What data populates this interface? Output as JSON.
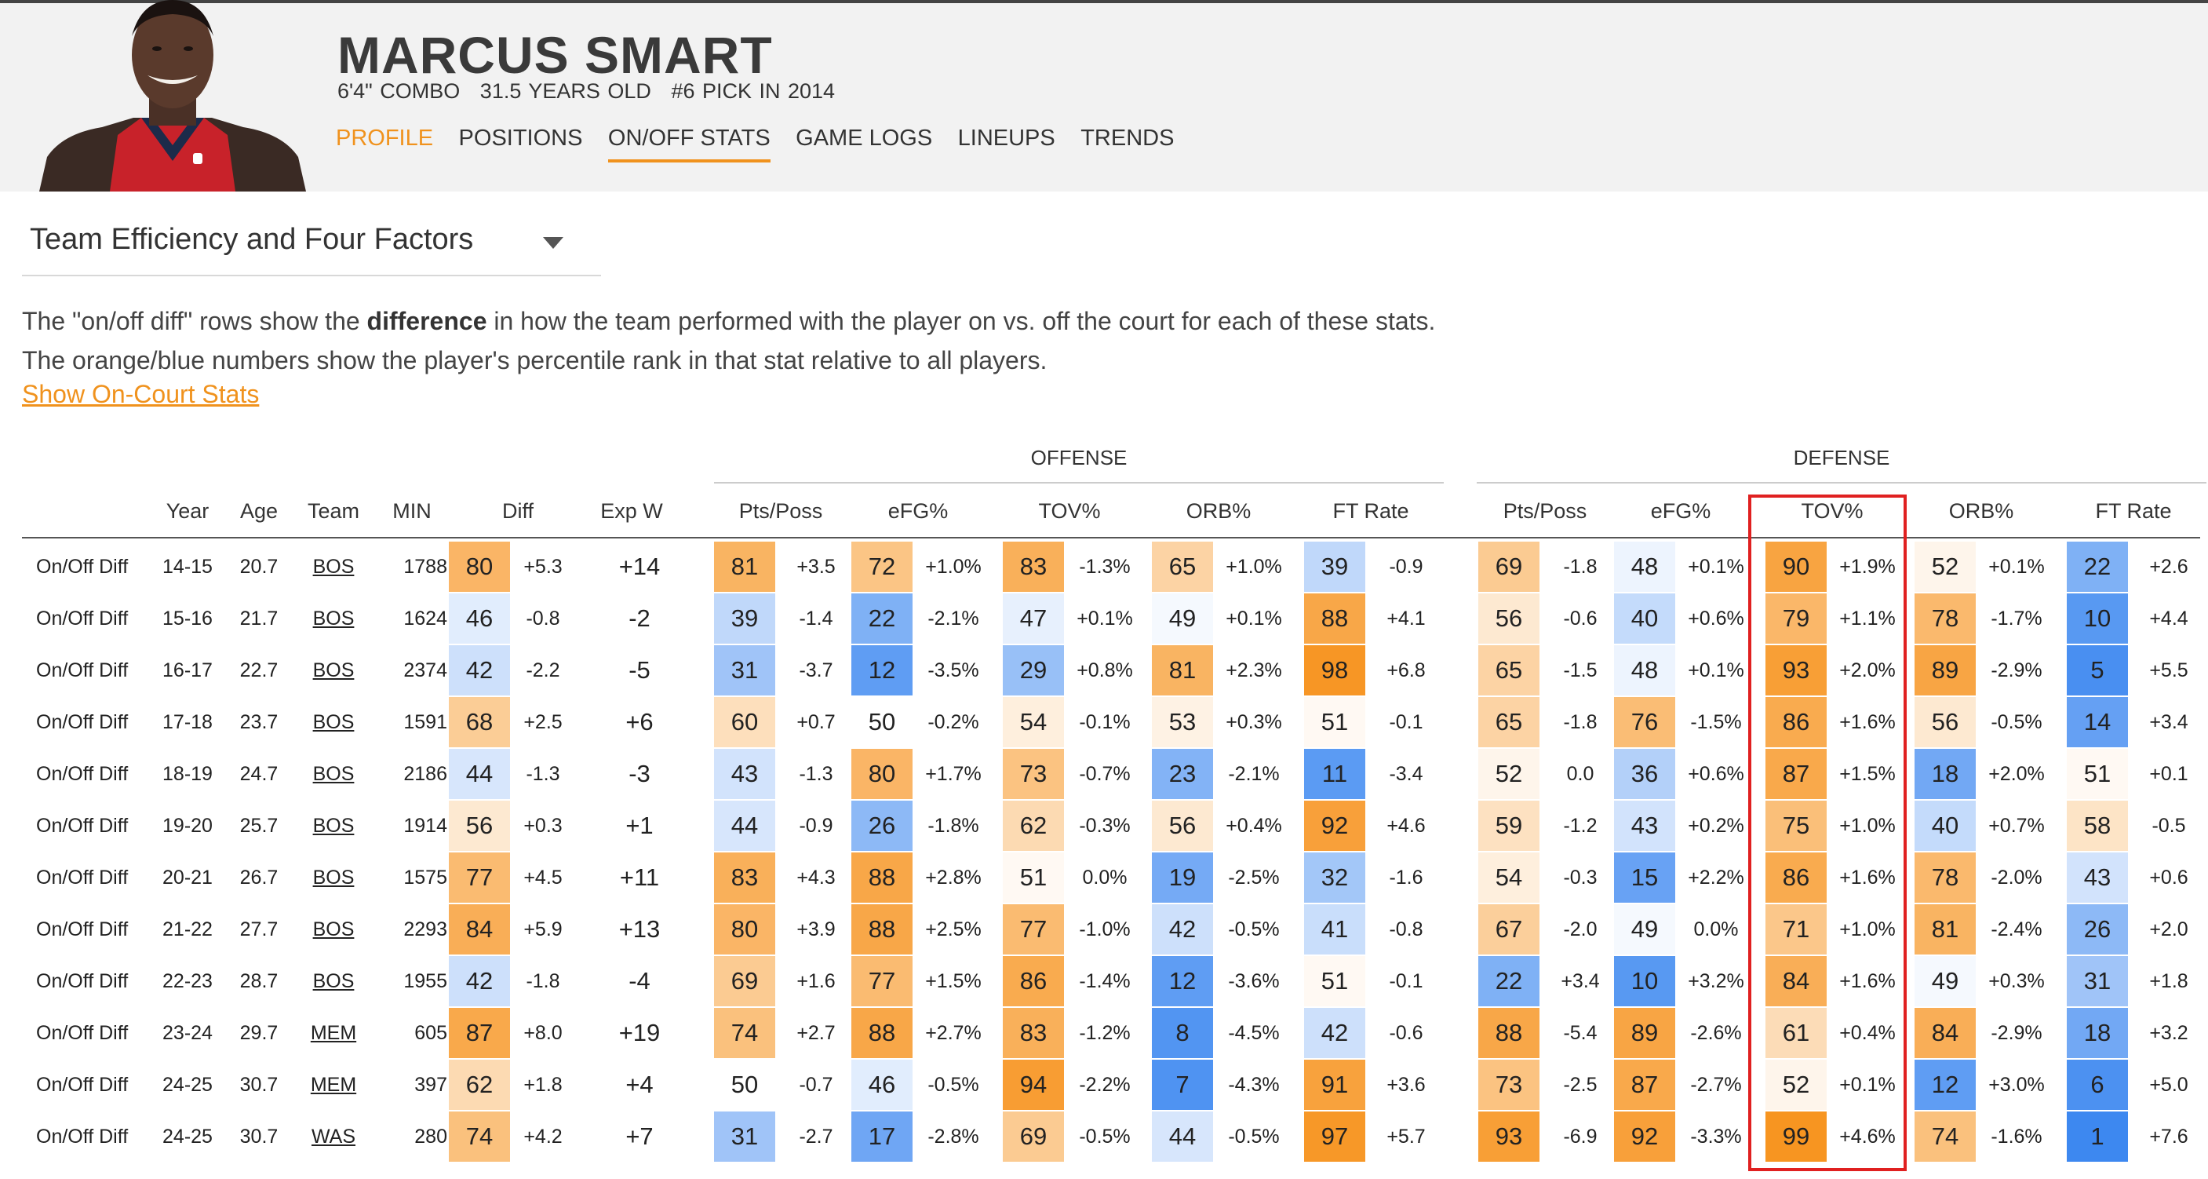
{
  "player": {
    "name": "MARCUS SMART",
    "height": "6'4\" COMBO",
    "age": "31.5 YEARS OLD",
    "draft": "#6 PICK IN 2014"
  },
  "nav": [
    "PROFILE",
    "POSITIONS",
    "ON/OFF STATS",
    "GAME LOGS",
    "LINEUPS",
    "TRENDS"
  ],
  "selector": {
    "label": "Team Efficiency and Four Factors"
  },
  "description": {
    "line1a": "The \"on/off diff\" rows show the ",
    "line1b": "difference",
    "line1c": " in how the team performed with the player on vs. off the court for each of these stats.",
    "line2": "The orange/blue numbers show the player's percentile rank in that stat relative to all players."
  },
  "show_link": "Show On-Court Stats",
  "groups": {
    "offense": "OFFENSE",
    "defense": "DEFENSE"
  },
  "headers": {
    "year": "Year",
    "age": "Age",
    "team": "Team",
    "min": "MIN",
    "diff": "Diff",
    "expw": "Exp W",
    "stats": [
      "Pts/Poss",
      "eFG%",
      "TOV%",
      "ORB%",
      "FT Rate",
      "Pts/Poss",
      "eFG%",
      "TOV%",
      "ORB%",
      "FT Rate"
    ]
  },
  "colors": {
    "orange_strong": "#f7931e",
    "blue_strong": "#3a86f0",
    "highlight": "#e02020",
    "accent": "#f0921d"
  },
  "rows": [
    {
      "label": "On/Off Diff",
      "year": "14-15",
      "age": "20.7",
      "team": "BOS",
      "min": "1788",
      "diff_pct": 80,
      "diff": "+5.3",
      "expw": "+14",
      "stats": [
        [
          81,
          "+3.5"
        ],
        [
          72,
          "+1.0%"
        ],
        [
          83,
          "-1.3%"
        ],
        [
          65,
          "+1.0%"
        ],
        [
          39,
          "-0.9"
        ],
        [
          69,
          "-1.8"
        ],
        [
          48,
          "+0.1%"
        ],
        [
          90,
          "+1.9%"
        ],
        [
          52,
          "+0.1%"
        ],
        [
          22,
          "+2.6"
        ]
      ]
    },
    {
      "label": "On/Off Diff",
      "year": "15-16",
      "age": "21.7",
      "team": "BOS",
      "min": "1624",
      "diff_pct": 46,
      "diff": "-0.8",
      "expw": "-2",
      "stats": [
        [
          39,
          "-1.4"
        ],
        [
          22,
          "-2.1%"
        ],
        [
          47,
          "+0.1%"
        ],
        [
          49,
          "+0.1%"
        ],
        [
          88,
          "+4.1"
        ],
        [
          56,
          "-0.6"
        ],
        [
          40,
          "+0.6%"
        ],
        [
          79,
          "+1.1%"
        ],
        [
          78,
          "-1.7%"
        ],
        [
          10,
          "+4.4"
        ]
      ]
    },
    {
      "label": "On/Off Diff",
      "year": "16-17",
      "age": "22.7",
      "team": "BOS",
      "min": "2374",
      "diff_pct": 42,
      "diff": "-2.2",
      "expw": "-5",
      "stats": [
        [
          31,
          "-3.7"
        ],
        [
          12,
          "-3.5%"
        ],
        [
          29,
          "+0.8%"
        ],
        [
          81,
          "+2.3%"
        ],
        [
          98,
          "+6.8"
        ],
        [
          65,
          "-1.5"
        ],
        [
          48,
          "+0.1%"
        ],
        [
          93,
          "+2.0%"
        ],
        [
          89,
          "-2.9%"
        ],
        [
          5,
          "+5.5"
        ]
      ]
    },
    {
      "label": "On/Off Diff",
      "year": "17-18",
      "age": "23.7",
      "team": "BOS",
      "min": "1591",
      "diff_pct": 68,
      "diff": "+2.5",
      "expw": "+6",
      "stats": [
        [
          60,
          "+0.7"
        ],
        [
          50,
          "-0.2%"
        ],
        [
          54,
          "-0.1%"
        ],
        [
          53,
          "+0.3%"
        ],
        [
          51,
          "-0.1"
        ],
        [
          65,
          "-1.8"
        ],
        [
          76,
          "-1.5%"
        ],
        [
          86,
          "+1.6%"
        ],
        [
          56,
          "-0.5%"
        ],
        [
          14,
          "+3.4"
        ]
      ]
    },
    {
      "label": "On/Off Diff",
      "year": "18-19",
      "age": "24.7",
      "team": "BOS",
      "min": "2186",
      "diff_pct": 44,
      "diff": "-1.3",
      "expw": "-3",
      "stats": [
        [
          43,
          "-1.3"
        ],
        [
          80,
          "+1.7%"
        ],
        [
          73,
          "-0.7%"
        ],
        [
          23,
          "-2.1%"
        ],
        [
          11,
          "-3.4"
        ],
        [
          52,
          "0.0"
        ],
        [
          36,
          "+0.6%"
        ],
        [
          87,
          "+1.5%"
        ],
        [
          18,
          "+2.0%"
        ],
        [
          51,
          "+0.1"
        ]
      ]
    },
    {
      "label": "On/Off Diff",
      "year": "19-20",
      "age": "25.7",
      "team": "BOS",
      "min": "1914",
      "diff_pct": 56,
      "diff": "+0.3",
      "expw": "+1",
      "stats": [
        [
          44,
          "-0.9"
        ],
        [
          26,
          "-1.8%"
        ],
        [
          62,
          "-0.3%"
        ],
        [
          56,
          "+0.4%"
        ],
        [
          92,
          "+4.6"
        ],
        [
          59,
          "-1.2"
        ],
        [
          43,
          "+0.2%"
        ],
        [
          75,
          "+1.0%"
        ],
        [
          40,
          "+0.7%"
        ],
        [
          58,
          "-0.5"
        ]
      ]
    },
    {
      "label": "On/Off Diff",
      "year": "20-21",
      "age": "26.7",
      "team": "BOS",
      "min": "1575",
      "diff_pct": 77,
      "diff": "+4.5",
      "expw": "+11",
      "stats": [
        [
          83,
          "+4.3"
        ],
        [
          88,
          "+2.8%"
        ],
        [
          51,
          "0.0%"
        ],
        [
          19,
          "-2.5%"
        ],
        [
          32,
          "-1.6"
        ],
        [
          54,
          "-0.3"
        ],
        [
          15,
          "+2.2%"
        ],
        [
          86,
          "+1.6%"
        ],
        [
          78,
          "-2.0%"
        ],
        [
          43,
          "+0.6"
        ]
      ]
    },
    {
      "label": "On/Off Diff",
      "year": "21-22",
      "age": "27.7",
      "team": "BOS",
      "min": "2293",
      "diff_pct": 84,
      "diff": "+5.9",
      "expw": "+13",
      "stats": [
        [
          80,
          "+3.9"
        ],
        [
          88,
          "+2.5%"
        ],
        [
          77,
          "-1.0%"
        ],
        [
          42,
          "-0.5%"
        ],
        [
          41,
          "-0.8"
        ],
        [
          67,
          "-2.0"
        ],
        [
          49,
          "0.0%"
        ],
        [
          71,
          "+1.0%"
        ],
        [
          81,
          "-2.4%"
        ],
        [
          26,
          "+2.0"
        ]
      ]
    },
    {
      "label": "On/Off Diff",
      "year": "22-23",
      "age": "28.7",
      "team": "BOS",
      "min": "1955",
      "diff_pct": 42,
      "diff": "-1.8",
      "expw": "-4",
      "stats": [
        [
          69,
          "+1.6"
        ],
        [
          77,
          "+1.5%"
        ],
        [
          86,
          "-1.4%"
        ],
        [
          12,
          "-3.6%"
        ],
        [
          51,
          "-0.1"
        ],
        [
          22,
          "+3.4"
        ],
        [
          10,
          "+3.2%"
        ],
        [
          84,
          "+1.6%"
        ],
        [
          49,
          "+0.3%"
        ],
        [
          31,
          "+1.8"
        ]
      ]
    },
    {
      "label": "On/Off Diff",
      "year": "23-24",
      "age": "29.7",
      "team": "MEM",
      "min": "605",
      "diff_pct": 87,
      "diff": "+8.0",
      "expw": "+19",
      "stats": [
        [
          74,
          "+2.7"
        ],
        [
          88,
          "+2.7%"
        ],
        [
          83,
          "-1.2%"
        ],
        [
          8,
          "-4.5%"
        ],
        [
          42,
          "-0.6"
        ],
        [
          88,
          "-5.4"
        ],
        [
          89,
          "-2.6%"
        ],
        [
          61,
          "+0.4%"
        ],
        [
          84,
          "-2.9%"
        ],
        [
          18,
          "+3.2"
        ]
      ]
    },
    {
      "label": "On/Off Diff",
      "year": "24-25",
      "age": "30.7",
      "team": "MEM",
      "min": "397",
      "diff_pct": 62,
      "diff": "+1.8",
      "expw": "+4",
      "stats": [
        [
          50,
          "-0.7"
        ],
        [
          46,
          "-0.5%"
        ],
        [
          94,
          "-2.2%"
        ],
        [
          7,
          "-4.3%"
        ],
        [
          91,
          "+3.6"
        ],
        [
          73,
          "-2.5"
        ],
        [
          87,
          "-2.7%"
        ],
        [
          52,
          "+0.1%"
        ],
        [
          12,
          "+3.0%"
        ],
        [
          6,
          "+5.0"
        ]
      ]
    },
    {
      "label": "On/Off Diff",
      "year": "24-25",
      "age": "30.7",
      "team": "WAS",
      "min": "280",
      "diff_pct": 74,
      "diff": "+4.2",
      "expw": "+7",
      "stats": [
        [
          31,
          "-2.7"
        ],
        [
          17,
          "-2.8%"
        ],
        [
          69,
          "-0.5%"
        ],
        [
          44,
          "-0.5%"
        ],
        [
          97,
          "+5.7"
        ],
        [
          93,
          "-6.9"
        ],
        [
          92,
          "-3.3%"
        ],
        [
          99,
          "+4.6%"
        ],
        [
          74,
          "-1.6%"
        ],
        [
          1,
          "+7.6"
        ]
      ]
    }
  ]
}
